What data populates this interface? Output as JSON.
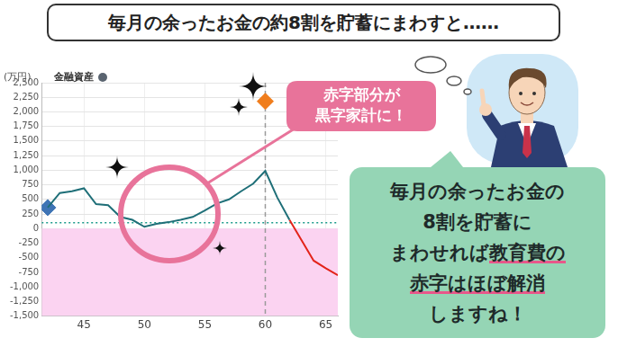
{
  "header": {
    "title": "毎月の余ったお金の約8割を貯蓄にまわすと……"
  },
  "chart_data": {
    "type": "line",
    "subtitle": "金融資産",
    "y_label": "(万円)",
    "x": [
      42,
      43,
      44,
      45,
      46,
      47,
      48,
      49,
      50,
      51,
      52,
      53,
      54,
      55,
      56,
      57,
      58,
      59,
      60,
      61,
      62,
      63,
      64,
      65,
      66
    ],
    "series": [
      {
        "color": "#1f6f78",
        "line_style": "solid",
        "values": [
          360,
          610,
          640,
          690,
          420,
          400,
          200,
          150,
          30,
          80,
          110,
          150,
          200,
          310,
          430,
          500,
          640,
          770,
          990,
          530,
          150,
          null,
          null,
          null,
          null
        ]
      },
      {
        "color": "#e3241b",
        "line_style": "solid",
        "values": [
          null,
          null,
          null,
          null,
          null,
          null,
          null,
          null,
          null,
          null,
          null,
          null,
          null,
          null,
          null,
          null,
          null,
          null,
          null,
          null,
          150,
          -200,
          -550,
          -680,
          -800
        ]
      },
      {
        "type": "scatter",
        "marker": "diamond",
        "color": "#3f74b5",
        "values": [
          360,
          null,
          null,
          null,
          null,
          null,
          null,
          null,
          null,
          null,
          null,
          null,
          null,
          null,
          null,
          null,
          null,
          null,
          null,
          null,
          null,
          null,
          null,
          null,
          null
        ]
      },
      {
        "type": "scatter",
        "marker": "diamond",
        "color": "#f07d1c",
        "values": [
          null,
          null,
          null,
          null,
          null,
          null,
          null,
          null,
          null,
          null,
          null,
          null,
          null,
          null,
          null,
          null,
          null,
          null,
          2180,
          null,
          null,
          null,
          null,
          null,
          null
        ]
      }
    ],
    "xlim": [
      41.5,
      66
    ],
    "xticks": [
      45,
      50,
      55,
      60,
      65
    ],
    "ylim": [
      -1500,
      2500
    ],
    "yticks": [
      {
        "value": -1500,
        "label": "-1,500"
      },
      {
        "value": -1250,
        "label": "-1,250"
      },
      {
        "value": -1000,
        "label": "-1,000"
      },
      -750,
      -500,
      -250,
      0,
      250,
      500,
      750,
      {
        "value": 1000,
        "label": "1,000"
      },
      {
        "value": 1250,
        "label": "1,250"
      },
      {
        "value": 1500,
        "label": "1,500"
      },
      {
        "value": 1750,
        "label": "1,750"
      },
      {
        "value": 2000,
        "label": "2,000"
      },
      {
        "value": 2250,
        "label": "2,250"
      },
      {
        "value": 2500,
        "label": "2,500"
      }
    ],
    "grid": true,
    "reference_lines": [
      {
        "axis": "y",
        "value": 100,
        "color": "#1a9a8a",
        "line_style": "dotted"
      },
      {
        "axis": "x",
        "value": 60,
        "color": "#9a9a9a",
        "line_style": "dashed"
      }
    ],
    "shaded_region": {
      "range": [
        -1500,
        0
      ],
      "color": "#fbd3f1"
    }
  },
  "callout": {
    "lines": [
      "赤字部分が",
      "黒字家計に！"
    ]
  },
  "speech": {
    "lines": [
      [
        {
          "text": "毎月の余ったお金の"
        }
      ],
      [
        {
          "text": "8割を貯蓄に"
        }
      ],
      [
        {
          "text": "まわせれば"
        },
        {
          "text": "教育費の",
          "highlight": true
        }
      ],
      [
        {
          "text": "赤字はほぼ解消",
          "highlight": true
        }
      ],
      [
        {
          "text": "しますね！"
        }
      ]
    ]
  }
}
